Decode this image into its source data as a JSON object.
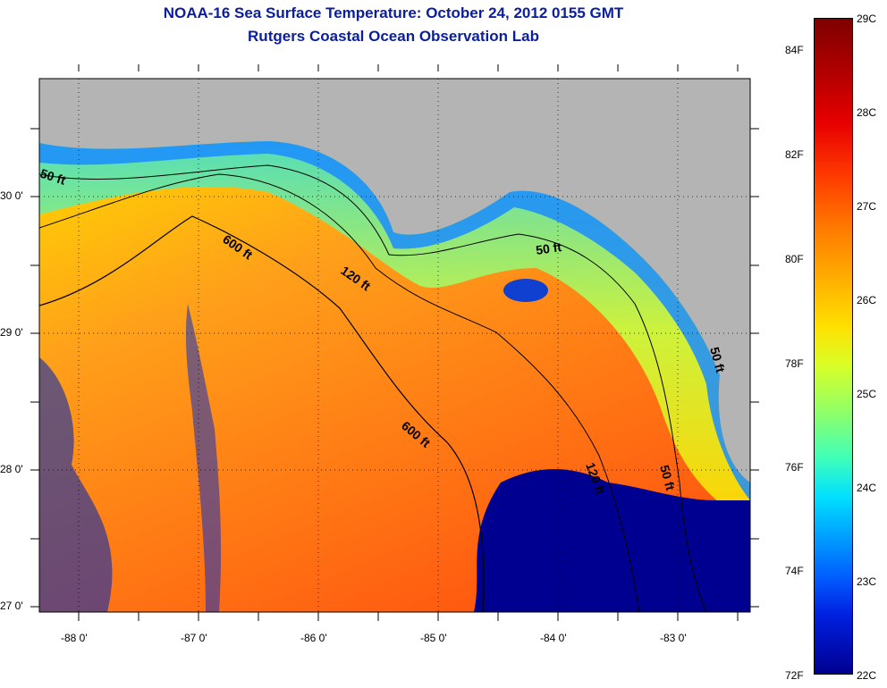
{
  "title": {
    "line1": "NOAA-16 Sea Surface Temperature:  October 24, 2012 0155 GMT",
    "line2": "Rutgers Coastal Ocean Observation Lab"
  },
  "map": {
    "longitude_labels": [
      "-88 0'",
      "-87 0'",
      "-86 0'",
      "-85 0'",
      "-84 0'",
      "-83 0'"
    ],
    "latitude_labels": [
      "30 0'",
      "29 0'",
      "28 0'",
      "27 0'"
    ],
    "contour_labels": [
      "50 ft",
      "600 ft",
      "120 ft",
      "50 ft",
      "600 ft",
      "120 ft",
      "50 ft",
      "50 ft"
    ],
    "colors": {
      "land": "#b4b4b4",
      "warm_water": "#ff7a1a",
      "cool_water": "#1040ff",
      "cloud": "#000090"
    }
  },
  "colorbar": {
    "fahrenheit_labels": [
      "84F",
      "82F",
      "80F",
      "78F",
      "76F",
      "74F",
      "72F"
    ],
    "celsius_labels": [
      "29C",
      "28C",
      "27C",
      "26C",
      "25C",
      "24C",
      "23C",
      "22C"
    ]
  }
}
